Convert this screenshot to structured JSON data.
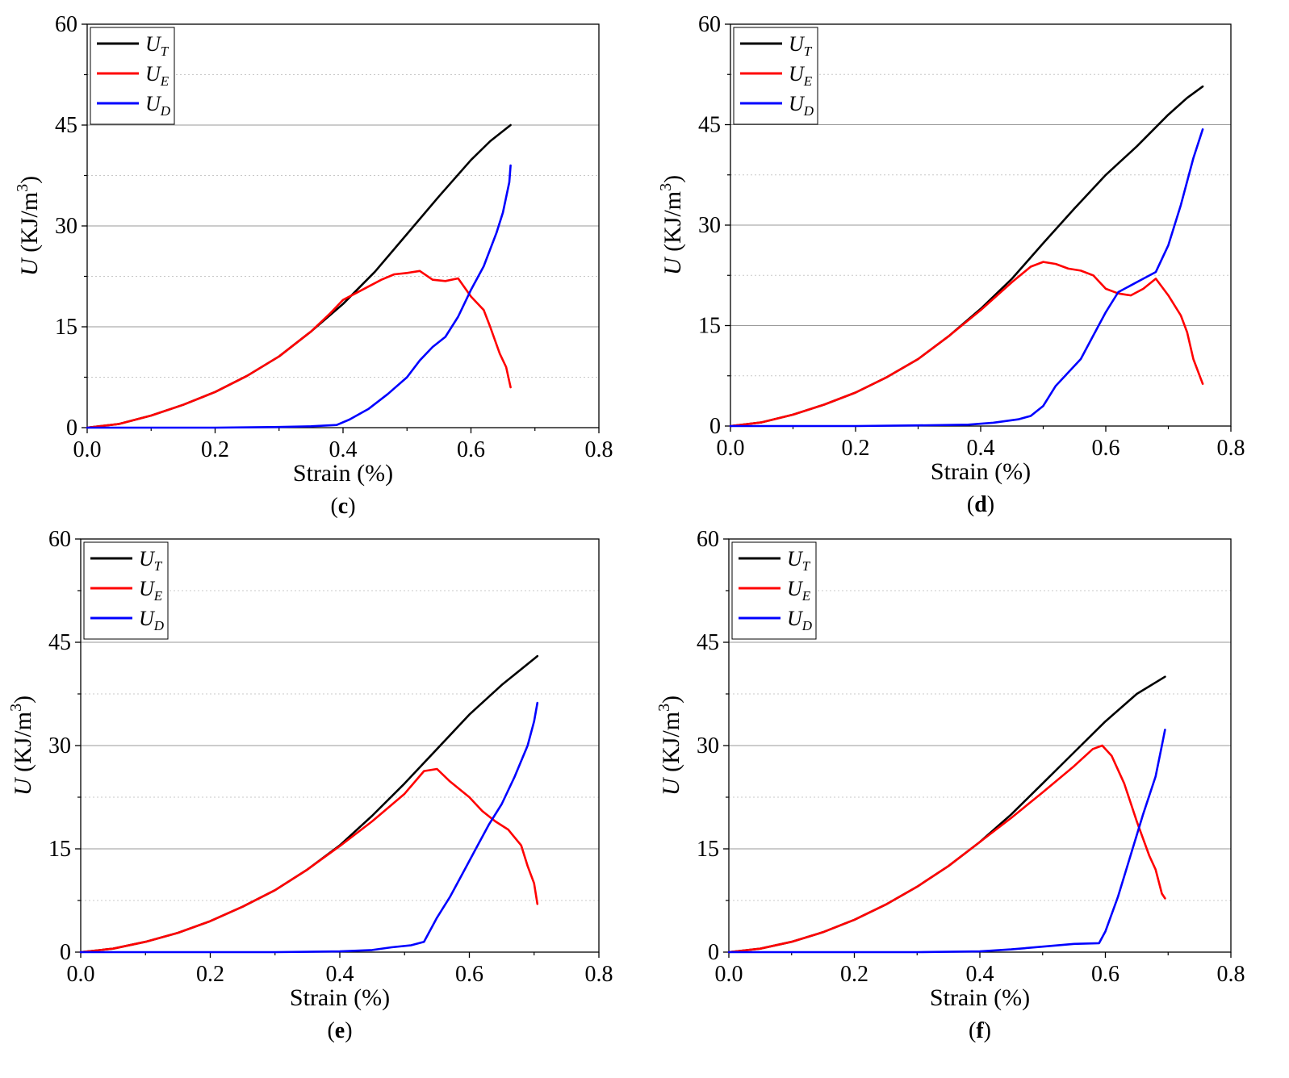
{
  "figure": {
    "panel_count": 4
  },
  "chart_data": [
    {
      "type": "line",
      "panel_label": "c",
      "xlabel": "Strain (%)",
      "ylabel": "U (KJ/m3)",
      "xlim": [
        0.0,
        0.8
      ],
      "ylim": [
        0,
        60
      ],
      "xticks": [
        "0.0",
        "0.2",
        "0.4",
        "0.6",
        "0.8"
      ],
      "yticks": [
        "0",
        "15",
        "30",
        "45",
        "60"
      ],
      "legend": {
        "position": "top-left"
      },
      "series": [
        {
          "name": "UT",
          "sub": "T",
          "color": "#000000",
          "x": [
            0,
            0.05,
            0.1,
            0.15,
            0.2,
            0.25,
            0.3,
            0.35,
            0.4,
            0.45,
            0.5,
            0.55,
            0.6,
            0.63,
            0.662
          ],
          "y": [
            0,
            0.55,
            1.8,
            3.4,
            5.3,
            7.7,
            10.6,
            14.3,
            18.4,
            23.2,
            28.8,
            34.4,
            39.8,
            42.6,
            45.0
          ]
        },
        {
          "name": "UE",
          "sub": "E",
          "color": "#ff0000",
          "x": [
            0,
            0.05,
            0.1,
            0.15,
            0.2,
            0.25,
            0.3,
            0.35,
            0.38,
            0.4,
            0.43,
            0.46,
            0.48,
            0.5,
            0.52,
            0.54,
            0.56,
            0.58,
            0.6,
            0.62,
            0.63,
            0.645,
            0.655,
            0.662
          ],
          "y": [
            0,
            0.55,
            1.8,
            3.4,
            5.3,
            7.7,
            10.6,
            14.3,
            17.0,
            19.0,
            20.5,
            22.0,
            22.8,
            23.0,
            23.3,
            22.0,
            21.8,
            22.2,
            19.5,
            17.5,
            15.0,
            11.0,
            9.0,
            6.0
          ]
        },
        {
          "name": "UD",
          "sub": "D",
          "color": "#0000ff",
          "x": [
            0,
            0.1,
            0.2,
            0.3,
            0.35,
            0.39,
            0.41,
            0.44,
            0.47,
            0.5,
            0.52,
            0.54,
            0.56,
            0.58,
            0.6,
            0.62,
            0.64,
            0.65,
            0.66,
            0.662
          ],
          "y": [
            0,
            0,
            0,
            0.1,
            0.2,
            0.4,
            1.2,
            2.8,
            5.0,
            7.5,
            10.0,
            12.0,
            13.5,
            16.5,
            20.5,
            24.0,
            29.0,
            32.0,
            36.5,
            39.0
          ]
        }
      ]
    },
    {
      "type": "line",
      "panel_label": "d",
      "xlabel": "Strain (%)",
      "ylabel": "U (KJ/m3)",
      "xlim": [
        0.0,
        0.8
      ],
      "ylim": [
        0,
        60
      ],
      "xticks": [
        "0.0",
        "0.2",
        "0.4",
        "0.6",
        "0.8"
      ],
      "yticks": [
        "0",
        "15",
        "30",
        "45",
        "60"
      ],
      "legend": {
        "position": "top-left"
      },
      "series": [
        {
          "name": "UT",
          "sub": "T",
          "color": "#000000",
          "x": [
            0,
            0.05,
            0.1,
            0.15,
            0.2,
            0.25,
            0.3,
            0.35,
            0.4,
            0.45,
            0.5,
            0.55,
            0.6,
            0.65,
            0.7,
            0.73,
            0.755
          ],
          "y": [
            0,
            0.55,
            1.7,
            3.2,
            5.0,
            7.3,
            10.0,
            13.5,
            17.5,
            22.0,
            27.3,
            32.5,
            37.5,
            41.8,
            46.5,
            49.0,
            50.7
          ]
        },
        {
          "name": "UE",
          "sub": "E",
          "color": "#ff0000",
          "x": [
            0,
            0.05,
            0.1,
            0.15,
            0.2,
            0.25,
            0.3,
            0.35,
            0.4,
            0.45,
            0.48,
            0.5,
            0.52,
            0.54,
            0.56,
            0.58,
            0.6,
            0.62,
            0.64,
            0.66,
            0.68,
            0.7,
            0.72,
            0.73,
            0.74,
            0.755
          ],
          "y": [
            0,
            0.55,
            1.7,
            3.2,
            5.0,
            7.3,
            10.0,
            13.5,
            17.3,
            21.5,
            23.8,
            24.5,
            24.2,
            23.5,
            23.2,
            22.5,
            20.5,
            19.8,
            19.5,
            20.5,
            22.0,
            19.5,
            16.5,
            14.0,
            10.0,
            6.3
          ]
        },
        {
          "name": "UD",
          "sub": "D",
          "color": "#0000ff",
          "x": [
            0,
            0.1,
            0.2,
            0.3,
            0.38,
            0.42,
            0.46,
            0.48,
            0.5,
            0.52,
            0.54,
            0.56,
            0.58,
            0.6,
            0.62,
            0.64,
            0.66,
            0.68,
            0.7,
            0.72,
            0.74,
            0.755
          ],
          "y": [
            0,
            0,
            0,
            0.1,
            0.2,
            0.5,
            1.0,
            1.5,
            3.0,
            6.0,
            8.0,
            10.0,
            13.5,
            17.0,
            20.0,
            21.0,
            22.0,
            23.0,
            27.0,
            33.0,
            40.0,
            44.3
          ]
        }
      ]
    },
    {
      "type": "line",
      "panel_label": "e",
      "xlabel": "Strain (%)",
      "ylabel": "U (KJ/m3)",
      "xlim": [
        0.0,
        0.8
      ],
      "ylim": [
        0,
        60
      ],
      "xticks": [
        "0.0",
        "0.2",
        "0.4",
        "0.6",
        "0.8"
      ],
      "yticks": [
        "0",
        "15",
        "30",
        "45",
        "60"
      ],
      "legend": {
        "position": "top-left"
      },
      "series": [
        {
          "name": "UT",
          "sub": "T",
          "color": "#000000",
          "x": [
            0,
            0.05,
            0.1,
            0.15,
            0.2,
            0.25,
            0.3,
            0.35,
            0.4,
            0.45,
            0.5,
            0.55,
            0.6,
            0.65,
            0.7,
            0.705
          ],
          "y": [
            0,
            0.5,
            1.5,
            2.8,
            4.5,
            6.6,
            9.0,
            12.0,
            15.5,
            19.8,
            24.5,
            29.5,
            34.5,
            38.8,
            42.6,
            43.0
          ]
        },
        {
          "name": "UE",
          "sub": "E",
          "color": "#ff0000",
          "x": [
            0,
            0.05,
            0.1,
            0.15,
            0.2,
            0.25,
            0.3,
            0.35,
            0.4,
            0.45,
            0.5,
            0.53,
            0.55,
            0.57,
            0.6,
            0.62,
            0.64,
            0.66,
            0.68,
            0.69,
            0.7,
            0.705
          ],
          "y": [
            0,
            0.5,
            1.5,
            2.8,
            4.5,
            6.6,
            9.0,
            12.0,
            15.4,
            19.0,
            23.0,
            26.3,
            26.6,
            24.8,
            22.5,
            20.5,
            19.0,
            17.8,
            15.5,
            12.5,
            10.0,
            7.0
          ]
        },
        {
          "name": "UD",
          "sub": "D",
          "color": "#0000ff",
          "x": [
            0,
            0.1,
            0.2,
            0.3,
            0.4,
            0.45,
            0.48,
            0.51,
            0.53,
            0.55,
            0.57,
            0.59,
            0.61,
            0.63,
            0.65,
            0.67,
            0.69,
            0.7,
            0.705
          ],
          "y": [
            0,
            0,
            0,
            0,
            0.1,
            0.3,
            0.7,
            1.0,
            1.5,
            5.0,
            8.0,
            11.5,
            15.0,
            18.5,
            21.5,
            25.5,
            30.0,
            33.5,
            36.2
          ]
        }
      ]
    },
    {
      "type": "line",
      "panel_label": "f",
      "xlabel": "Strain (%)",
      "ylabel": "U (KJ/m3)",
      "xlim": [
        0.0,
        0.8
      ],
      "ylim": [
        0,
        60
      ],
      "xticks": [
        "0.0",
        "0.2",
        "0.4",
        "0.6",
        "0.8"
      ],
      "yticks": [
        "0",
        "15",
        "30",
        "45",
        "60"
      ],
      "legend": {
        "position": "top-left"
      },
      "series": [
        {
          "name": "UT",
          "sub": "T",
          "color": "#000000",
          "x": [
            0,
            0.05,
            0.1,
            0.15,
            0.2,
            0.25,
            0.3,
            0.35,
            0.4,
            0.45,
            0.5,
            0.55,
            0.6,
            0.65,
            0.695
          ],
          "y": [
            0,
            0.5,
            1.5,
            2.9,
            4.7,
            6.9,
            9.5,
            12.5,
            16.0,
            20.0,
            24.5,
            29.0,
            33.5,
            37.5,
            40.0
          ]
        },
        {
          "name": "UE",
          "sub": "E",
          "color": "#ff0000",
          "x": [
            0,
            0.05,
            0.1,
            0.15,
            0.2,
            0.25,
            0.3,
            0.35,
            0.4,
            0.45,
            0.5,
            0.55,
            0.58,
            0.595,
            0.61,
            0.63,
            0.65,
            0.67,
            0.68,
            0.69,
            0.695
          ],
          "y": [
            0,
            0.5,
            1.5,
            2.9,
            4.7,
            6.9,
            9.5,
            12.5,
            16.0,
            19.5,
            23.2,
            27.0,
            29.5,
            30.0,
            28.5,
            24.5,
            19.0,
            14.0,
            12.0,
            8.5,
            7.8
          ]
        },
        {
          "name": "UD",
          "sub": "D",
          "color": "#0000ff",
          "x": [
            0,
            0.1,
            0.2,
            0.3,
            0.4,
            0.45,
            0.5,
            0.55,
            0.59,
            0.6,
            0.62,
            0.64,
            0.66,
            0.68,
            0.69,
            0.695
          ],
          "y": [
            0,
            0,
            0,
            0,
            0.1,
            0.4,
            0.8,
            1.2,
            1.3,
            3.0,
            8.0,
            14.0,
            20.0,
            25.5,
            30.0,
            32.3
          ]
        }
      ]
    }
  ]
}
